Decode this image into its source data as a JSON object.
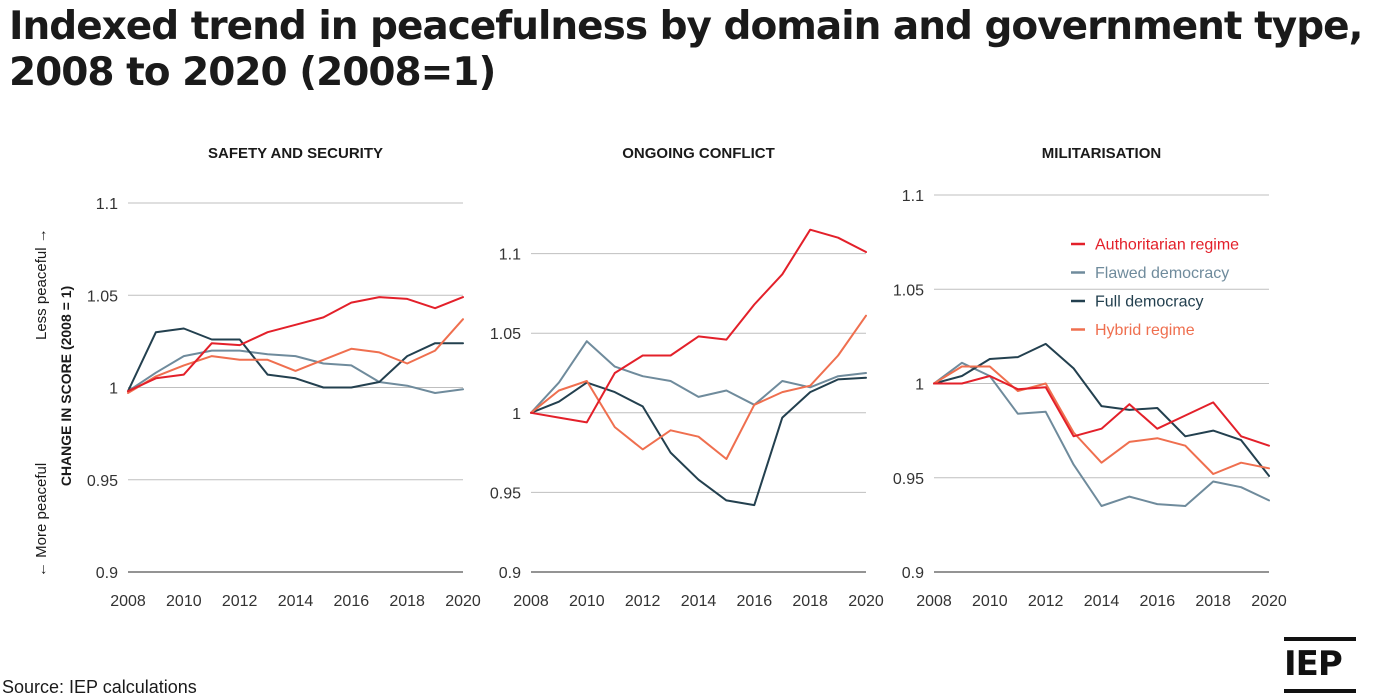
{
  "title": "Indexed trend in peacefulness by domain and government type, 2008 to 2020 (2008=1)",
  "source": "Source: IEP calculations",
  "logo": "IEP",
  "y_axis": {
    "title": "CHANGE IN SCORE (2008 = 1)",
    "top_note": "Less peaceful →",
    "bottom_note": "← More peaceful"
  },
  "colors": {
    "Authoritarian regime": "#e3202a",
    "Flawed democracy": "#6f8b9c",
    "Full democracy": "#23404f",
    "Hybrid regime": "#ef6f4f",
    "grid": "#bfbfbf",
    "axis": "#555555"
  },
  "chart_data": [
    {
      "type": "line",
      "title": "SAFETY AND SECURITY",
      "x": [
        2008,
        2009,
        2010,
        2011,
        2012,
        2013,
        2014,
        2015,
        2016,
        2017,
        2018,
        2019,
        2020
      ],
      "x_ticks": [
        "2008",
        "2010",
        "2012",
        "2014",
        "2016",
        "2018",
        "2020"
      ],
      "y_ticks": [
        "0.9",
        "0.95",
        "1",
        "1.05",
        "1.1"
      ],
      "ylim": [
        0.9,
        1.1
      ],
      "grid": true,
      "series": [
        {
          "name": "Authoritarian regime",
          "values": [
            0.998,
            1.005,
            1.007,
            1.024,
            1.023,
            1.03,
            1.034,
            1.038,
            1.046,
            1.049,
            1.048,
            1.043,
            1.049
          ]
        },
        {
          "name": "Flawed democracy",
          "values": [
            0.998,
            1.008,
            1.017,
            1.02,
            1.02,
            1.018,
            1.017,
            1.013,
            1.012,
            1.003,
            1.001,
            0.997,
            0.999
          ]
        },
        {
          "name": "Full democracy",
          "values": [
            0.998,
            1.03,
            1.032,
            1.026,
            1.026,
            1.007,
            1.005,
            1.0,
            1.0,
            1.003,
            1.017,
            1.024,
            1.024
          ]
        },
        {
          "name": "Hybrid regime",
          "values": [
            0.997,
            1.006,
            1.012,
            1.017,
            1.015,
            1.015,
            1.009,
            1.015,
            1.021,
            1.019,
            1.013,
            1.02,
            1.037
          ]
        }
      ]
    },
    {
      "type": "line",
      "title": "ONGOING CONFLICT",
      "x": [
        2008,
        2009,
        2010,
        2011,
        2012,
        2013,
        2014,
        2015,
        2016,
        2017,
        2018,
        2019,
        2020
      ],
      "x_ticks": [
        "2008",
        "2010",
        "2012",
        "2014",
        "2016",
        "2018",
        "2020"
      ],
      "y_ticks": [
        "0.9",
        "0.95",
        "1",
        "1.05",
        "1.1"
      ],
      "ylim": [
        0.9,
        1.15
      ],
      "grid": true,
      "series": [
        {
          "name": "Authoritarian regime",
          "values": [
            1.0,
            0.997,
            0.994,
            1.025,
            1.036,
            1.036,
            1.048,
            1.046,
            1.068,
            1.087,
            1.115,
            1.11,
            1.101
          ]
        },
        {
          "name": "Flawed democracy",
          "values": [
            1.0,
            1.019,
            1.045,
            1.029,
            1.023,
            1.02,
            1.01,
            1.014,
            1.005,
            1.02,
            1.016,
            1.023,
            1.025
          ]
        },
        {
          "name": "Full democracy",
          "values": [
            1.0,
            1.007,
            1.019,
            1.013,
            1.004,
            0.975,
            0.958,
            0.945,
            0.942,
            0.997,
            1.013,
            1.021,
            1.022
          ]
        },
        {
          "name": "Hybrid regime",
          "values": [
            1.0,
            1.014,
            1.02,
            0.991,
            0.977,
            0.989,
            0.985,
            0.971,
            1.005,
            1.013,
            1.017,
            1.036,
            1.061
          ]
        }
      ]
    },
    {
      "type": "line",
      "title": "MILITARISATION",
      "x": [
        2008,
        2009,
        2010,
        2011,
        2012,
        2013,
        2014,
        2015,
        2016,
        2017,
        2018,
        2019,
        2020
      ],
      "x_ticks": [
        "2008",
        "2010",
        "2012",
        "2014",
        "2016",
        "2018",
        "2020"
      ],
      "y_ticks": [
        "0.9",
        "0.95",
        "1",
        "1.05",
        "1.1"
      ],
      "ylim": [
        0.9,
        1.1
      ],
      "grid": true,
      "legend": "top-right",
      "legend_order": [
        "Authoritarian regime",
        "Flawed democracy",
        "Full democracy",
        "Hybrid regime"
      ],
      "series": [
        {
          "name": "Authoritarian regime",
          "values": [
            1.0,
            1.0,
            1.004,
            0.997,
            0.998,
            0.972,
            0.976,
            0.989,
            0.976,
            0.983,
            0.99,
            0.972,
            0.967
          ]
        },
        {
          "name": "Flawed democracy",
          "values": [
            1.0,
            1.011,
            1.004,
            0.984,
            0.985,
            0.957,
            0.935,
            0.94,
            0.936,
            0.935,
            0.948,
            0.945,
            0.938
          ]
        },
        {
          "name": "Full democracy",
          "values": [
            1.0,
            1.004,
            1.013,
            1.014,
            1.021,
            1.008,
            0.988,
            0.986,
            0.987,
            0.972,
            0.975,
            0.97,
            0.951
          ]
        },
        {
          "name": "Hybrid regime",
          "values": [
            1.0,
            1.009,
            1.009,
            0.996,
            1.0,
            0.974,
            0.958,
            0.969,
            0.971,
            0.967,
            0.952,
            0.958,
            0.955
          ]
        }
      ]
    }
  ]
}
